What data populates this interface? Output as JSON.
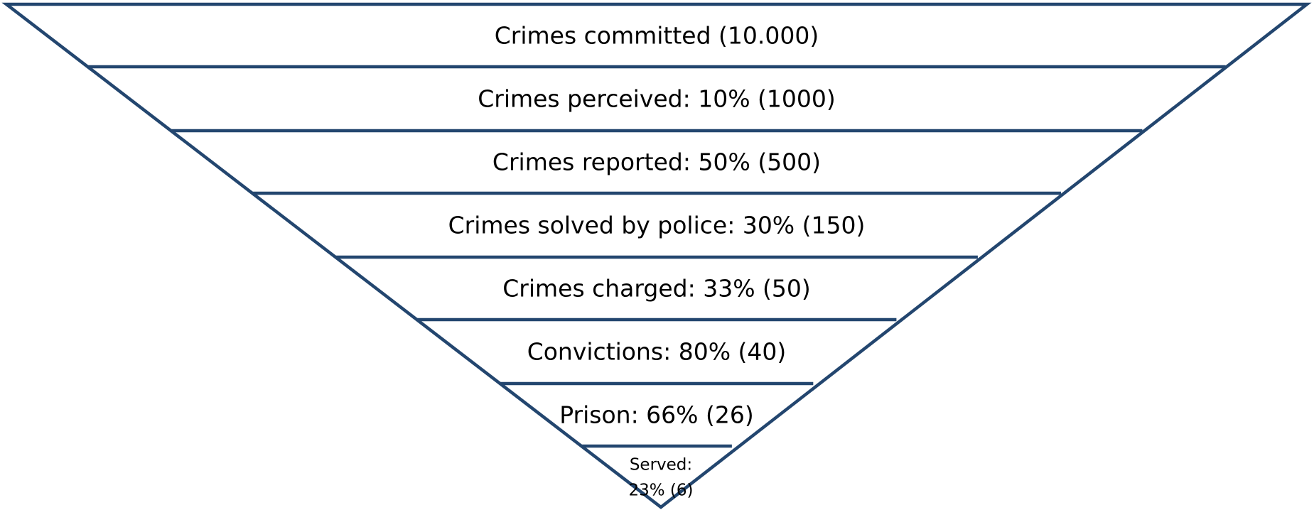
{
  "funnel": {
    "levels": [
      {
        "lines": [
          "Crimes committed (10.000)"
        ]
      },
      {
        "lines": [
          "Crimes perceived: 10% (1000)"
        ]
      },
      {
        "lines": [
          "Crimes reported: 50% (500)"
        ]
      },
      {
        "lines": [
          "Crimes solved by police: 30% (150)"
        ]
      },
      {
        "lines": [
          "Crimes charged: 33%  (50)"
        ]
      },
      {
        "lines": [
          "Convictions: 80% (40)"
        ]
      },
      {
        "lines": [
          "Prison: 66% (26)"
        ]
      },
      {
        "lines": [
          "Served:",
          "23% (6)"
        ]
      }
    ]
  }
}
